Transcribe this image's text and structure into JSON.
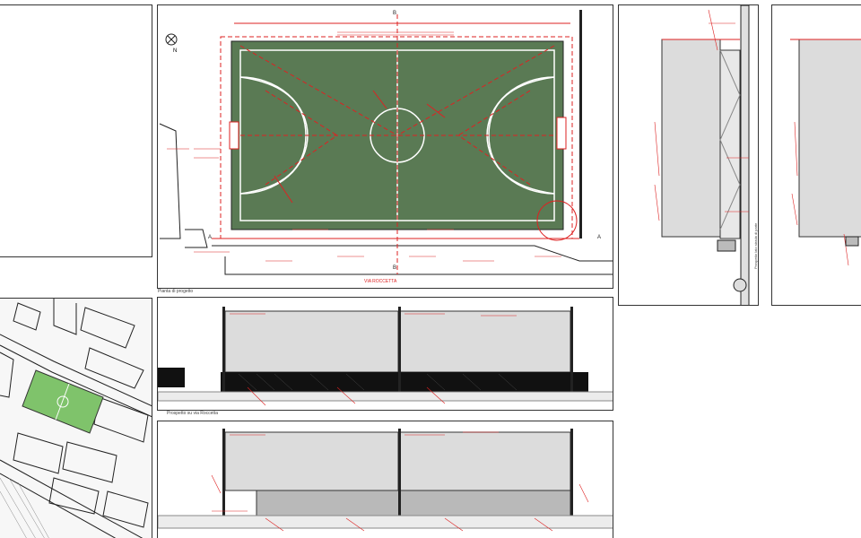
{
  "colors": {
    "annotation": "#d92323",
    "field_green": "#5a7a54",
    "fence_grey": "#dcdcdc",
    "line_black": "#222222",
    "map_green": "#7fc36b"
  },
  "plan": {
    "north_label": "N",
    "section_marker_top": "B",
    "section_marker_bottom": "B",
    "section_marker_right": "A",
    "section_marker_left": "A",
    "street_label": "VIA ROCCETTA",
    "caption": "Pianta di progetto"
  },
  "elevation_front": {
    "caption": "Prospetto su via Roccetta"
  },
  "elevation_side": {
    "caption": "Prospetto lato strada di parte"
  }
}
